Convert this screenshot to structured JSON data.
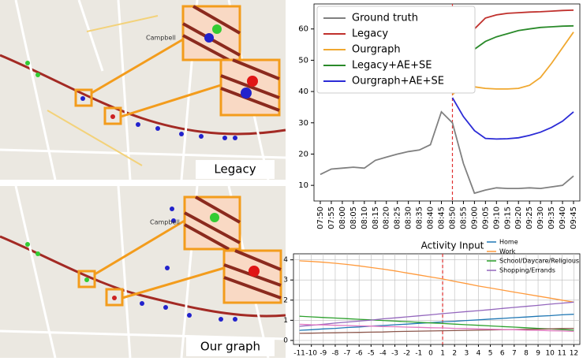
{
  "maps": [
    {
      "caption": "Legacy",
      "place_label": "Campbell"
    },
    {
      "caption": "Our graph",
      "place_label": "Campbell"
    }
  ],
  "chart_data": [
    {
      "type": "line",
      "categories": [
        "07:50",
        "07:55",
        "08:00",
        "08:05",
        "08:10",
        "08:15",
        "08:20",
        "08:25",
        "08:30",
        "08:35",
        "08:40",
        "08:45",
        "08:50",
        "08:55",
        "09:00",
        "09:05",
        "09:10",
        "09:15",
        "09:20",
        "09:25",
        "09:30",
        "09:35",
        "09:40",
        "09:45"
      ],
      "series": [
        {
          "name": "Ground truth",
          "color": "#808080",
          "values": [
            13.5,
            15.2,
            15.5,
            15.8,
            15.5,
            18,
            19,
            20,
            20.8,
            21.3,
            23,
            33.5,
            30,
            17,
            7.5,
            8.5,
            9.2,
            9,
            9,
            9.2,
            9,
            9.5,
            10,
            13
          ]
        },
        {
          "name": "Legacy",
          "color": "#c0302c",
          "values": [
            null,
            null,
            null,
            null,
            null,
            null,
            null,
            null,
            null,
            null,
            null,
            null,
            43,
            54,
            60,
            63.5,
            64.5,
            65,
            65.2,
            65.4,
            65.5,
            65.7,
            65.9,
            66
          ]
        },
        {
          "name": "Ourgraph",
          "color": "#f0a830",
          "values": [
            null,
            null,
            null,
            null,
            null,
            null,
            null,
            null,
            null,
            null,
            null,
            null,
            39,
            42,
            41.5,
            41,
            40.8,
            40.8,
            41,
            42,
            44.5,
            49,
            54,
            59
          ]
        },
        {
          "name": "Legacy+AE+SE",
          "color": "#2a8a2a",
          "values": [
            null,
            null,
            null,
            null,
            null,
            null,
            null,
            null,
            null,
            null,
            null,
            null,
            42,
            50,
            53.5,
            56,
            57.5,
            58.5,
            59.5,
            60,
            60.5,
            60.7,
            60.9,
            61
          ]
        },
        {
          "name": "Ourgraph+AE+SE",
          "color": "#2b2bd6",
          "values": [
            null,
            null,
            null,
            null,
            null,
            null,
            null,
            null,
            null,
            null,
            null,
            null,
            38,
            32,
            27.5,
            25,
            24.8,
            24.9,
            25.2,
            26,
            27,
            28.5,
            30.5,
            33.5
          ]
        }
      ],
      "ylim": [
        5,
        68
      ],
      "yticks": [
        10,
        20,
        30,
        40,
        50,
        60
      ],
      "vline": "08:50",
      "legend": "upper-left",
      "grid": false
    },
    {
      "type": "line",
      "title": "Activity Input",
      "x": [
        -11,
        -10,
        -9,
        -8,
        -7,
        -6,
        -5,
        -4,
        -3,
        -2,
        -1,
        0,
        1,
        2,
        3,
        4,
        5,
        6,
        7,
        8,
        9,
        10,
        11,
        12
      ],
      "xlim": [
        -11.5,
        12.5
      ],
      "xticks": [
        -11,
        -10,
        -9,
        -8,
        -7,
        -6,
        -5,
        -4,
        -3,
        -2,
        -1,
        0,
        1,
        2,
        3,
        4,
        5,
        6,
        7,
        8,
        9,
        10,
        11,
        12
      ],
      "ylim": [
        -0.2,
        4.3
      ],
      "yticks": [
        0,
        1,
        2,
        3,
        4
      ],
      "vline": 1,
      "legend": "upper-right",
      "grid": true,
      "series": [
        {
          "name": "Home",
          "color": "#1f77b4",
          "values": [
            0.5,
            0.53,
            0.57,
            0.6,
            0.64,
            0.67,
            0.71,
            0.74,
            0.78,
            0.81,
            0.85,
            0.88,
            0.92,
            0.95,
            0.99,
            1.02,
            1.06,
            1.09,
            1.13,
            1.16,
            1.2,
            1.23,
            1.27,
            1.3
          ]
        },
        {
          "name": "Work",
          "color": "#ff9a3c",
          "values": [
            3.95,
            3.92,
            3.88,
            3.83,
            3.77,
            3.7,
            3.62,
            3.54,
            3.45,
            3.35,
            3.25,
            3.15,
            3.05,
            2.93,
            2.82,
            2.7,
            2.6,
            2.5,
            2.4,
            2.3,
            2.2,
            2.1,
            2.0,
            1.9
          ]
        },
        {
          "name": "School/Daycare/Religious",
          "color": "#2ca02c",
          "values": [
            1.2,
            1.17,
            1.14,
            1.11,
            1.08,
            1.05,
            1.02,
            0.99,
            0.96,
            0.93,
            0.9,
            0.87,
            0.84,
            0.81,
            0.78,
            0.75,
            0.72,
            0.69,
            0.66,
            0.63,
            0.6,
            0.57,
            0.54,
            0.51
          ]
        },
        {
          "name": "Shopping/Errands",
          "color": "#9467bd",
          "values": [
            0.7,
            0.75,
            0.8,
            0.86,
            0.91,
            0.96,
            1.01,
            1.07,
            1.12,
            1.17,
            1.22,
            1.27,
            1.33,
            1.38,
            1.43,
            1.48,
            1.53,
            1.59,
            1.64,
            1.69,
            1.74,
            1.8,
            1.85,
            1.9
          ]
        },
        {
          "color": "#8c564b",
          "values": [
            0.35,
            0.36,
            0.37,
            0.38,
            0.39,
            0.4,
            0.41,
            0.42,
            0.44,
            0.45,
            0.46,
            0.47,
            0.48,
            0.49,
            0.5,
            0.51,
            0.52,
            0.53,
            0.54,
            0.55,
            0.56,
            0.57,
            0.59,
            0.6
          ]
        },
        {
          "color": "#e377c2",
          "values": [
            0.8,
            0.78,
            0.77,
            0.75,
            0.74,
            0.72,
            0.71,
            0.69,
            0.68,
            0.66,
            0.65,
            0.63,
            0.62,
            0.6,
            0.59,
            0.57,
            0.56,
            0.54,
            0.53,
            0.51,
            0.5,
            0.48,
            0.47,
            0.45
          ]
        }
      ]
    }
  ]
}
